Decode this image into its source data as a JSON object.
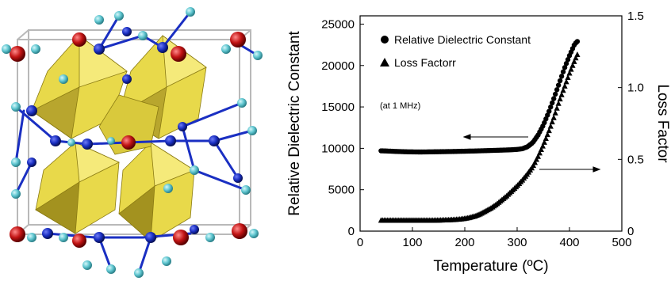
{
  "chart_data": {
    "type": "scatter",
    "x": [
      40,
      50,
      60,
      70,
      80,
      90,
      100,
      110,
      120,
      130,
      140,
      150,
      160,
      170,
      180,
      190,
      200,
      210,
      220,
      230,
      240,
      250,
      260,
      270,
      280,
      290,
      300,
      310,
      320,
      330,
      340,
      350,
      360,
      370,
      380,
      390,
      400,
      410,
      415
    ],
    "series": [
      {
        "name": "Relative Dielectric Constant",
        "axis": "left",
        "marker": "circle",
        "values": [
          9700,
          9680,
          9650,
          9620,
          9600,
          9580,
          9570,
          9560,
          9560,
          9570,
          9580,
          9590,
          9600,
          9610,
          9620,
          9640,
          9650,
          9670,
          9680,
          9700,
          9720,
          9740,
          9760,
          9780,
          9800,
          9830,
          9870,
          9950,
          10200,
          10700,
          11600,
          12800,
          14300,
          16000,
          17800,
          19600,
          21200,
          22600,
          22900
        ]
      },
      {
        "name": "Loss Factorr",
        "axis": "right",
        "marker": "triangle",
        "values": [
          0.075,
          0.075,
          0.075,
          0.075,
          0.075,
          0.075,
          0.075,
          0.075,
          0.075,
          0.075,
          0.075,
          0.076,
          0.077,
          0.078,
          0.08,
          0.083,
          0.087,
          0.095,
          0.105,
          0.12,
          0.14,
          0.16,
          0.185,
          0.215,
          0.245,
          0.28,
          0.315,
          0.355,
          0.4,
          0.45,
          0.52,
          0.6,
          0.69,
          0.79,
          0.9,
          1.0,
          1.1,
          1.19,
          1.23
        ]
      }
    ],
    "xlabel": "Temperature (ºC)",
    "ylabel": "Relative Dielectric Constant",
    "y2label": "Loss Factor",
    "xlim": [
      0,
      500
    ],
    "ylim": [
      0,
      26000
    ],
    "y2lim": [
      0,
      1.5
    ],
    "xticks": [
      "0",
      "100",
      "200",
      "300",
      "400",
      "500"
    ],
    "yticks": [
      "0",
      "5000",
      "10000",
      "15000",
      "20000",
      "25000"
    ],
    "y2ticks": [
      "0",
      "0.5",
      "1.0",
      "1.5"
    ],
    "annotation": "(at 1 MHz)",
    "legend_placement": "top-left",
    "grid": false
  },
  "crystal_structure": {
    "polyhedra_color": "#e8d94a",
    "blue_atom_color": "#1a2fc2",
    "cyan_atom_color": "#5fc6d0",
    "red_atom_color": "#c21414"
  }
}
